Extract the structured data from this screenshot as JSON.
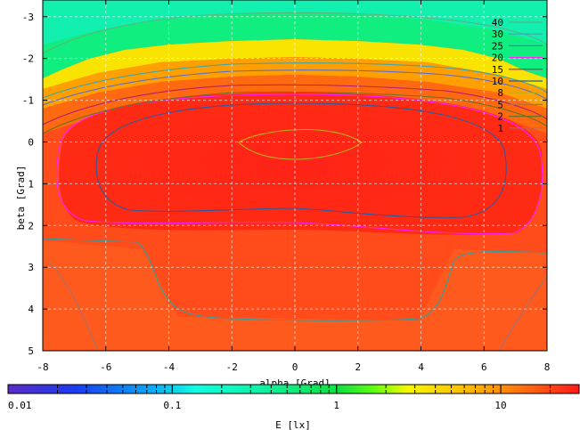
{
  "chart_data": {
    "type": "heatmap",
    "xlabel": "alpha [Grad]",
    "ylabel": "beta [Grad]",
    "xlim": [
      -8,
      8
    ],
    "ylim": [
      -3.4,
      5
    ],
    "y_reversed": true,
    "x_ticks": [
      "-8",
      "-6",
      "-4",
      "-2",
      "0",
      "2",
      "4",
      "6",
      "8"
    ],
    "y_ticks": [
      "-3",
      "-2",
      "-1",
      "0",
      "1",
      "2",
      "3",
      "4",
      "5"
    ],
    "grid": true,
    "contour_levels": [
      {
        "name": "40",
        "color": "#58b77a"
      },
      {
        "name": "30",
        "color": "#3aa7b0"
      },
      {
        "name": "25",
        "color": "#5a6fd0"
      },
      {
        "name": "20",
        "color": "#ff20ff"
      },
      {
        "name": "15",
        "color": "#b01f6a"
      },
      {
        "name": "10",
        "color": "#2c5aa0"
      },
      {
        "name": "8",
        "color": "#b8b020"
      },
      {
        "name": "5",
        "color": "#2aa0a0"
      },
      {
        "name": "2",
        "color": "#6a7020"
      },
      {
        "name": "1",
        "color": "#a07070"
      }
    ],
    "legend_position": "top-right",
    "colorbar": {
      "scale": "log",
      "range": [
        0.01,
        30
      ],
      "tick_labels": [
        "0.01",
        "0.1",
        "1",
        "10"
      ],
      "tick_values": [
        0.01,
        0.1,
        1,
        10
      ],
      "label": "E [lx]"
    }
  }
}
